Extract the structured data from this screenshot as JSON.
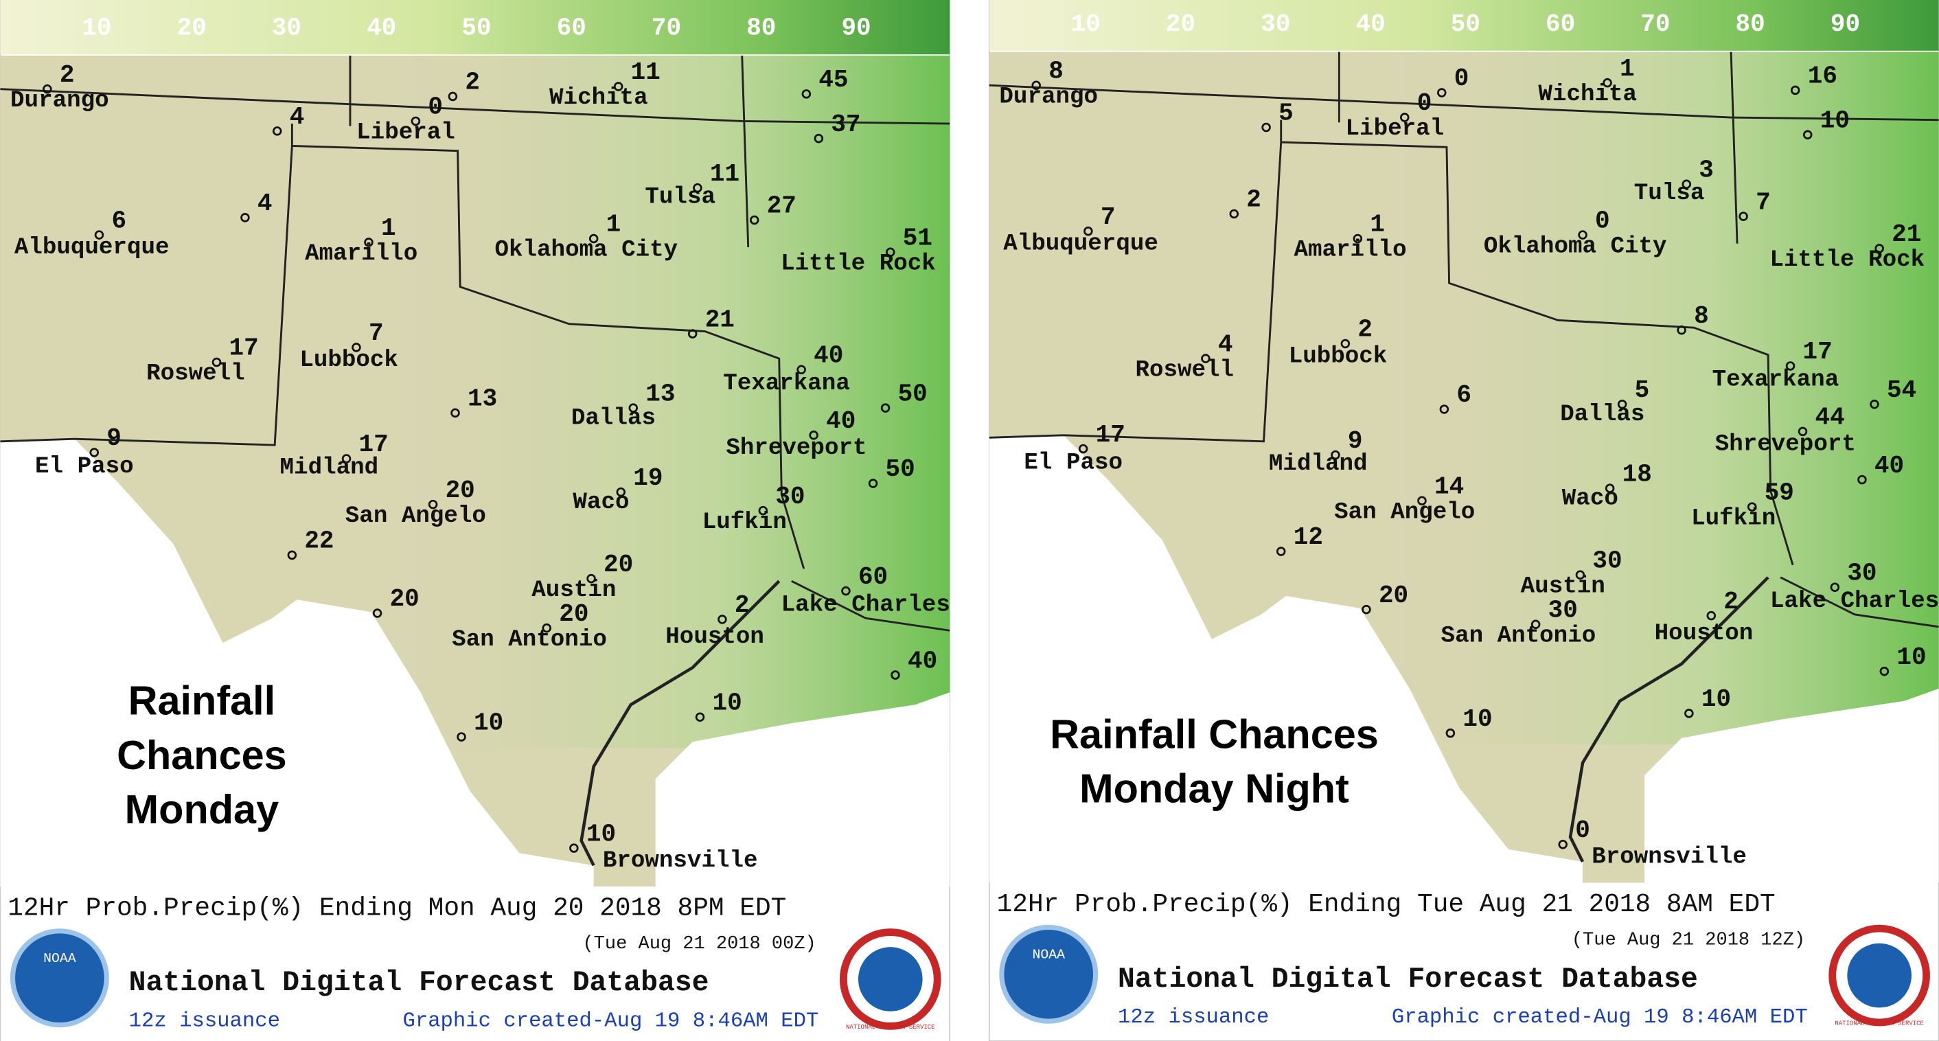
{
  "colorbar_ticks": [
    10,
    20,
    30,
    40,
    50,
    60,
    70,
    80,
    90
  ],
  "logos": {
    "noaa": "NOAA",
    "nws": "NATIONAL WEATHER SERVICE"
  },
  "panels": [
    {
      "overlay_title": [
        "Rainfall",
        "Chances",
        "Monday"
      ],
      "cities": [
        "Durango",
        "Liberal",
        "Wichita",
        "Tulsa",
        "Albuquerque",
        "Amarillo",
        "Oklahoma City",
        "Little Rock",
        "Lubbock",
        "Roswell",
        "Texarkana",
        "Dallas",
        "Shreveport",
        "El Paso",
        "Midland",
        "Waco",
        "San Angelo",
        "Lufkin",
        "Austin",
        "Lake Charles",
        "San Antonio",
        "Houston",
        "Brownsville"
      ],
      "values": [
        2,
        2,
        0,
        11,
        45,
        37,
        4,
        4,
        11,
        27,
        6,
        1,
        1,
        51,
        7,
        17,
        21,
        40,
        13,
        13,
        50,
        9,
        17,
        40,
        20,
        19,
        50,
        30,
        22,
        20,
        60,
        20,
        20,
        2,
        40,
        10,
        10,
        10
      ],
      "footer": {
        "line1": "12Hr Prob.Precip(%) Ending Mon Aug 20 2018  8PM EDT",
        "line2": "(Tue Aug 21 2018 00Z)",
        "agency": "National Digital Forecast Database",
        "issuance": "12z issuance",
        "created": "Graphic created-Aug 19  8:46AM EDT"
      }
    },
    {
      "overlay_title": [
        "Rainfall Chances",
        "Monday Night"
      ],
      "cities": [
        "Durango",
        "Liberal",
        "Wichita",
        "Tulsa",
        "Albuquerque",
        "Amarillo",
        "Oklahoma City",
        "Little Rock",
        "Lubbock",
        "Roswell",
        "Texarkana",
        "Dallas",
        "Shreveport",
        "El Paso",
        "Midland",
        "Waco",
        "San Angelo",
        "Lufkin",
        "Austin",
        "Lake Charles",
        "San Antonio",
        "Houston",
        "Brownsville"
      ],
      "values": [
        8,
        0,
        0,
        1,
        16,
        10,
        5,
        2,
        3,
        7,
        7,
        1,
        0,
        21,
        2,
        4,
        8,
        17,
        6,
        5,
        54,
        17,
        9,
        44,
        14,
        18,
        40,
        59,
        12,
        30,
        30,
        30,
        20,
        2,
        10,
        10,
        10,
        0
      ],
      "footer": {
        "line1": "12Hr Prob.Precip(%) Ending Tue Aug 21 2018  8AM EDT",
        "line2": "(Tue Aug 21 2018 12Z)",
        "agency": "National Digital Forecast Database",
        "issuance": "12z issuance",
        "created": "Graphic created-Aug 19  8:46AM EDT"
      }
    }
  ]
}
